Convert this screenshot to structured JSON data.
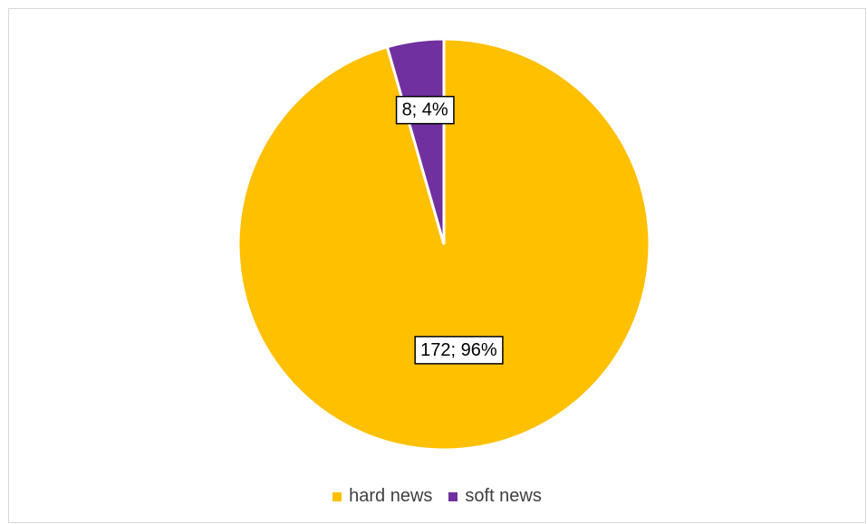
{
  "chart_data": {
    "type": "pie",
    "title": "",
    "slices": [
      {
        "label": "hard news",
        "value": 172,
        "percent": "96%",
        "color": "#FFC000"
      },
      {
        "label": "soft news",
        "value": 8,
        "percent": "4%",
        "color": "#7030A0"
      }
    ],
    "data_labels": [
      "172; 96%",
      "8; 4%"
    ],
    "legend_position": "bottom",
    "start_angle": "12 o'clock, counter-clockwise"
  }
}
